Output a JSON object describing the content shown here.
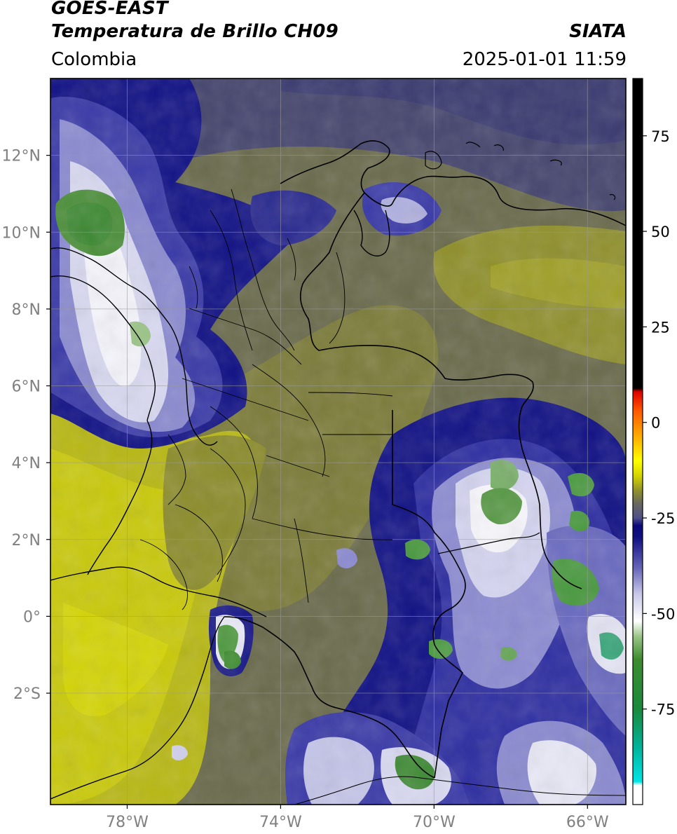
{
  "header": {
    "satellite": "GOES-EAST",
    "product": "Temperatura de Brillo CH09",
    "source": "SIATA",
    "region": "Colombia",
    "timestamp": "2025-01-01 11:59"
  },
  "map": {
    "lon_range": [
      -80.0,
      -65.0
    ],
    "lat_range": [
      -4.9,
      14.0
    ],
    "lon_ticks": [
      "78°W",
      "74°W",
      "70°W",
      "66°W"
    ],
    "lon_tick_values": [
      -78,
      -74,
      -70,
      -66
    ],
    "lat_ticks": [
      "12°N",
      "10°N",
      "8°N",
      "6°N",
      "4°N",
      "2°N",
      "0°",
      "2°S"
    ],
    "lat_tick_values": [
      12,
      10,
      8,
      6,
      4,
      2,
      0,
      -2
    ],
    "grid": true
  },
  "colorbar": {
    "range": [
      -100,
      90
    ],
    "tick_labels": [
      "75",
      "50",
      "25",
      "0",
      "-25",
      "-50",
      "-75"
    ],
    "tick_values": [
      75,
      50,
      25,
      0,
      -25,
      -50,
      -75
    ],
    "stops": [
      {
        "v": -100,
        "c": "#ffffff"
      },
      {
        "v": -95,
        "c": "#ffffff"
      },
      {
        "v": -94,
        "c": "#00e5e5"
      },
      {
        "v": -85,
        "c": "#00b39a"
      },
      {
        "v": -75,
        "c": "#1a8a3c"
      },
      {
        "v": -62,
        "c": "#3d8c2e"
      },
      {
        "v": -56,
        "c": "#9bc487"
      },
      {
        "v": -52,
        "c": "#ffffff"
      },
      {
        "v": -45,
        "c": "#c9c9e8"
      },
      {
        "v": -38,
        "c": "#6464b8"
      },
      {
        "v": -30,
        "c": "#101080"
      },
      {
        "v": -27,
        "c": "#0a0a78"
      },
      {
        "v": -25,
        "c": "#50508a"
      },
      {
        "v": -21,
        "c": "#6a6a5c"
      },
      {
        "v": -18,
        "c": "#8e8e30"
      },
      {
        "v": -14,
        "c": "#d4d400"
      },
      {
        "v": -10,
        "c": "#ffff00"
      },
      {
        "v": -4,
        "c": "#ffb000"
      },
      {
        "v": 3,
        "c": "#ff5a00"
      },
      {
        "v": 8,
        "c": "#e00000"
      },
      {
        "v": 9,
        "c": "#000000"
      },
      {
        "v": 90,
        "c": "#000000"
      }
    ]
  }
}
